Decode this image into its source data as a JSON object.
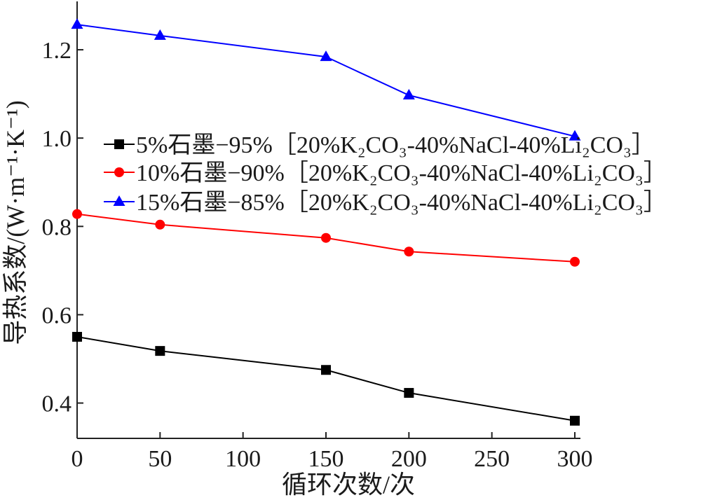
{
  "chart_data": {
    "type": "line",
    "title": "",
    "xlabel": "循环次数/次",
    "ylabel": "导热系数/(W·m⁻¹·K⁻¹)",
    "xlim": [
      0,
      300
    ],
    "ylim": [
      0.32,
      1.3
    ],
    "xticks": [
      0,
      50,
      100,
      150,
      200,
      250,
      300
    ],
    "xtick_labels": [
      "0",
      "50",
      "100",
      "150",
      "200",
      "250",
      "300"
    ],
    "yticks": [
      0.4,
      0.6,
      0.8,
      1.0,
      1.2
    ],
    "ytick_labels": [
      "0.4",
      "0.6",
      "0.8",
      "1.0",
      "1.2"
    ],
    "grid": false,
    "legend_position": "center-right",
    "x": [
      0,
      50,
      150,
      200,
      300
    ],
    "series": [
      {
        "name": "5%石墨−95%［20%K₂CO₃-40%NaCl-40%Li₂CO₃］",
        "values": [
          0.55,
          0.518,
          0.475,
          0.423,
          0.36
        ],
        "color": "#000000",
        "marker": "square"
      },
      {
        "name": "10%石墨−90%［20%K₂CO₃-40%NaCl-40%Li₂CO₃］",
        "values": [
          0.828,
          0.804,
          0.774,
          0.743,
          0.72
        ],
        "color": "#ff0000",
        "marker": "circle"
      },
      {
        "name": "15%石墨−85%［20%K₂CO₃-40%NaCl-40%Li₂CO₃］",
        "values": [
          1.257,
          1.232,
          1.184,
          1.097,
          1.004
        ],
        "color": "#0000ff",
        "marker": "triangle"
      }
    ]
  }
}
